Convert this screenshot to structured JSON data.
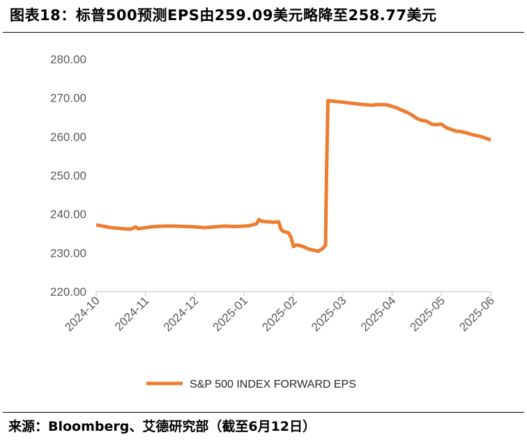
{
  "title": "图表18：标普500预测EPS由259.09美元略降至258.77美元",
  "source": "来源：Bloomberg、艾德研究部（截至6月12日）",
  "chart_data": {
    "type": "line",
    "title": "图表18：标普500预测EPS由259.09美元略降至258.77美元",
    "xlabel": "",
    "ylabel": "",
    "ylim": [
      220,
      280
    ],
    "y_ticks": [
      "220.00",
      "230.00",
      "240.00",
      "250.00",
      "260.00",
      "270.00",
      "280.00"
    ],
    "x_ticks": [
      "2024-10",
      "2024-11",
      "2024-12",
      "2025-01",
      "2025-02",
      "2025-03",
      "2025-04",
      "2025-05",
      "2025-06"
    ],
    "grid": false,
    "legend": "bottom-center",
    "color": "#ED7D31",
    "series": [
      {
        "name": "S&P 500 INDEX FORWARD EPS",
        "x": [
          0.0,
          0.1,
          0.25,
          0.4,
          0.55,
          0.7,
          0.8,
          0.85,
          0.95,
          1.05,
          1.2,
          1.4,
          1.6,
          1.8,
          2.0,
          2.2,
          2.4,
          2.6,
          2.8,
          3.0,
          3.1,
          3.25,
          3.3,
          3.35,
          3.45,
          3.5,
          3.6,
          3.7,
          3.75,
          3.8,
          3.9,
          3.95,
          4.0,
          4.05,
          4.1,
          4.2,
          4.3,
          4.4,
          4.5,
          4.6,
          4.65,
          4.67,
          4.7,
          4.85,
          5.0,
          5.2,
          5.4,
          5.6,
          5.7,
          5.9,
          6.1,
          6.2,
          6.3,
          6.4,
          6.5,
          6.6,
          6.7,
          6.8,
          6.9,
          7.0,
          7.1,
          7.3,
          7.4,
          7.5,
          7.6,
          7.8,
          7.9,
          8.0
        ],
        "values": [
          237.2,
          237.0,
          236.6,
          236.4,
          236.2,
          236.1,
          236.7,
          236.2,
          236.4,
          236.6,
          236.8,
          236.9,
          236.9,
          236.8,
          236.7,
          236.5,
          236.7,
          236.9,
          236.8,
          236.9,
          237.0,
          237.5,
          238.6,
          238.2,
          238.0,
          238.0,
          237.9,
          238.0,
          236.0,
          235.5,
          235.2,
          234.0,
          231.6,
          232.0,
          232.0,
          231.6,
          231.0,
          230.7,
          230.4,
          231.2,
          232.0,
          250.0,
          269.3,
          269.1,
          268.9,
          268.6,
          268.3,
          268.1,
          268.3,
          268.2,
          267.4,
          266.8,
          266.3,
          265.6,
          264.7,
          264.2,
          264.0,
          263.2,
          263.1,
          263.2,
          262.3,
          261.4,
          261.3,
          261.0,
          260.6,
          260.0,
          259.6,
          259.1
        ]
      }
    ]
  }
}
